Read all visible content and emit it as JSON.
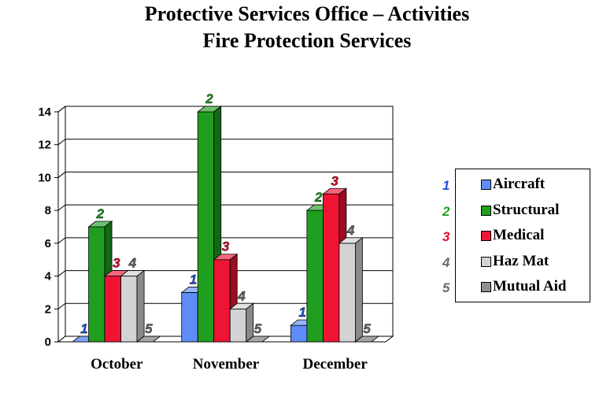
{
  "title_line1": "Protective Services Office – Activities",
  "title_line2": "Fire Protection Services",
  "chart_data": {
    "type": "bar",
    "categories": [
      "October",
      "November",
      "December"
    ],
    "series": [
      {
        "name": "Aircraft",
        "label": "1",
        "color": "#5f8cf7",
        "values": [
          0,
          3,
          1
        ]
      },
      {
        "name": "Structural",
        "label": "2",
        "color": "#1f9e1f",
        "values": [
          7,
          14,
          8
        ]
      },
      {
        "name": "Medical",
        "label": "3",
        "color": "#f01434",
        "values": [
          4,
          5,
          9
        ]
      },
      {
        "name": "Haz Mat",
        "label": "4",
        "color": "#d3d3d3",
        "values": [
          4,
          2,
          6
        ]
      },
      {
        "name": "Mutual Aid",
        "label": "5",
        "color": "#8f8f8f",
        "values": [
          0,
          0,
          0
        ]
      }
    ],
    "ylim": [
      0,
      14
    ],
    "yticks": [
      0,
      2,
      4,
      6,
      8,
      10,
      12,
      14
    ],
    "grid": true,
    "legend_position": "right",
    "label_colors": [
      "#1f52d6",
      "#1f9e1f",
      "#e0102a",
      "#6a6a6a",
      "#6a6a6a"
    ]
  }
}
